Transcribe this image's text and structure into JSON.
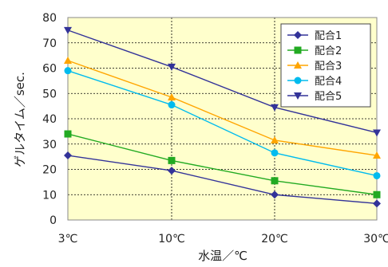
{
  "chart_data": {
    "type": "line",
    "categories": [
      "3℃",
      "10℃",
      "20℃",
      "30℃"
    ],
    "xlabel": "水温／℃",
    "ylabel": "ゲルタイム／sec.",
    "ylim": [
      0,
      80
    ],
    "yticks": [
      0,
      10,
      20,
      30,
      40,
      50,
      60,
      70,
      80
    ],
    "grid": true,
    "plot_background": "#ffffcc",
    "legend_position": "top-right",
    "series": [
      {
        "name": "配合1",
        "values": [
          25.5,
          19.5,
          10,
          6.5
        ],
        "color": "#333399",
        "marker": "diamond"
      },
      {
        "name": "配合2",
        "values": [
          34,
          23.5,
          15.5,
          10
        ],
        "color": "#22aa22",
        "marker": "square"
      },
      {
        "name": "配合3",
        "values": [
          63,
          48.5,
          31.5,
          25.5
        ],
        "color": "#ffa500",
        "marker": "triangle"
      },
      {
        "name": "配合4",
        "values": [
          59,
          45.5,
          26.5,
          17.5
        ],
        "color": "#00bbee",
        "marker": "circle"
      },
      {
        "name": "配合5",
        "values": [
          75,
          60.5,
          44.5,
          34.5
        ],
        "color": "#333399",
        "marker": "triangle-down"
      }
    ]
  }
}
